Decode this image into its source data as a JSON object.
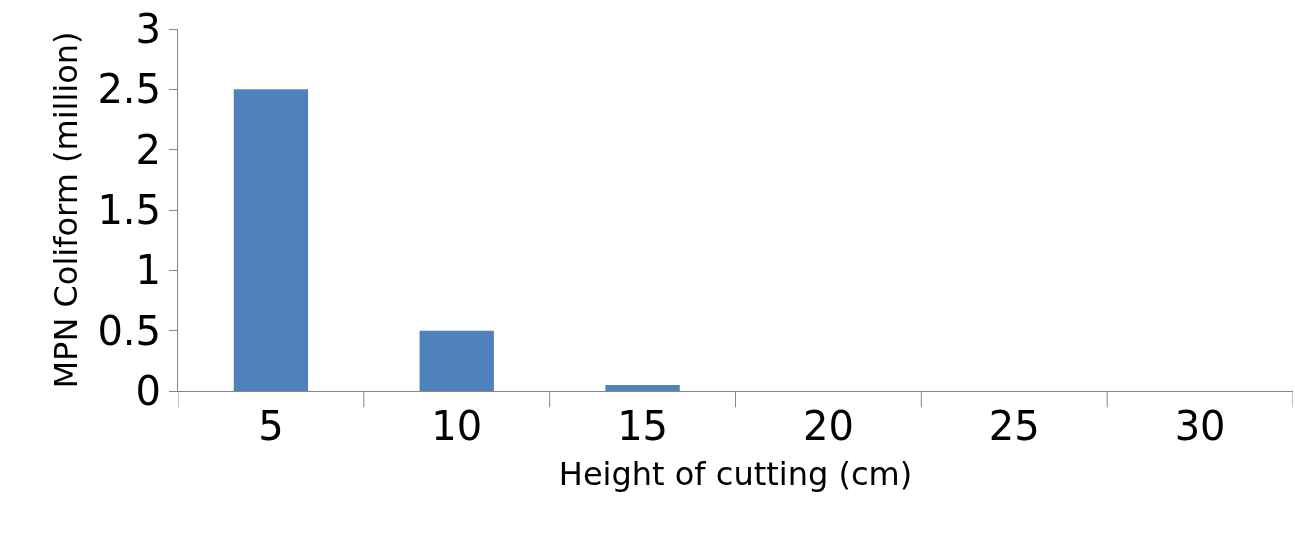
{
  "chart_data": {
    "type": "bar",
    "xlabel": "Height of cutting (cm)",
    "ylabel": "MPN Coliform (million)",
    "categories": [
      "5",
      "10",
      "15",
      "20",
      "25",
      "30"
    ],
    "values": [
      2.5,
      0.5,
      0.05,
      0,
      0,
      0
    ],
    "color": "#4f81bd",
    "ylim": [
      0,
      3
    ],
    "yticks": [
      0,
      0.5,
      1,
      1.5,
      2,
      2.5,
      3
    ],
    "grid": false
  }
}
